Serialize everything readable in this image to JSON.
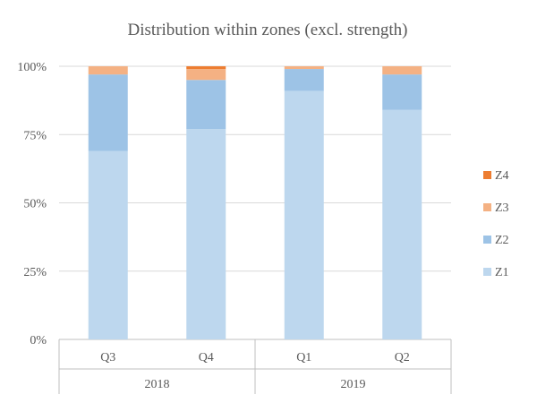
{
  "chart_data": {
    "type": "bar",
    "stacked": true,
    "title": "Distribution within zones (excl. strength)",
    "xlabel": "",
    "ylabel": "",
    "ylim": [
      0,
      100
    ],
    "yticks": [
      "0%",
      "25%",
      "50%",
      "75%",
      "100%"
    ],
    "grid": true,
    "legend_position": "right",
    "categories": [
      "Q3",
      "Q4",
      "Q1",
      "Q2"
    ],
    "category_groups": [
      {
        "label": "2018",
        "members": [
          "Q3",
          "Q4"
        ]
      },
      {
        "label": "2019",
        "members": [
          "Q1",
          "Q2"
        ]
      }
    ],
    "series": [
      {
        "name": "Z1",
        "color": "#bdd7ee",
        "values": [
          69,
          77,
          91,
          84
        ]
      },
      {
        "name": "Z2",
        "color": "#9dc3e6",
        "values": [
          28,
          18,
          8,
          13
        ]
      },
      {
        "name": "Z3",
        "color": "#f4b183",
        "values": [
          3,
          4,
          1,
          3
        ]
      },
      {
        "name": "Z4",
        "color": "#ed7d31",
        "values": [
          0,
          1,
          0,
          0
        ]
      }
    ]
  }
}
